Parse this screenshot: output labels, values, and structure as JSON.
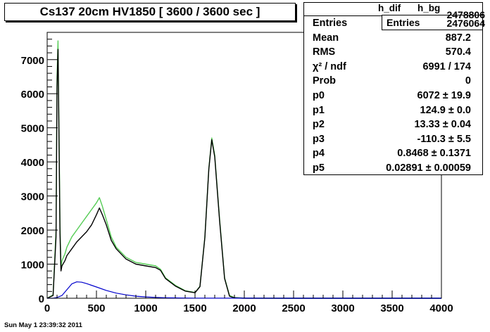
{
  "title": "Cs137 20cm HV1850 [ 3600 / 3600 sec ]",
  "footer": "Sun May  1 23:39:32 2011",
  "stats": {
    "hdr_a": "h_dif",
    "hdr_b": "h_bg",
    "entries_label": "Entries",
    "entries_value": "2478806",
    "entries_value_b": "2476064",
    "rows": [
      {
        "k": "Entries",
        "v": ""
      },
      {
        "k": "Mean",
        "v": "887.2"
      },
      {
        "k": "RMS",
        "v": "570.4"
      },
      {
        "k": "χ² / ndf",
        "v": "6991 / 174"
      },
      {
        "k": "Prob",
        "v": "0"
      },
      {
        "k": "p0",
        "v": "6072 ± 19.9"
      },
      {
        "k": "p1",
        "v": "124.9 ± 0.0"
      },
      {
        "k": "p2",
        "v": "13.33 ± 0.04"
      },
      {
        "k": "p3",
        "v": "-110.3 ± 5.5"
      },
      {
        "k": "p4",
        "v": "0.8468 ± 0.1371"
      },
      {
        "k": "p5",
        "v": "0.02891 ± 0.00059"
      }
    ]
  },
  "chart_data": {
    "type": "line",
    "title": "Cs137 20cm HV1850 [ 3600 / 3600 sec ]",
    "xlim": [
      0,
      4000
    ],
    "ylim": [
      0,
      7800
    ],
    "x_ticks": [
      0,
      500,
      1000,
      1500,
      2000,
      2500,
      3000,
      3500,
      4000
    ],
    "y_ticks": [
      0,
      1000,
      2000,
      3000,
      4000,
      5000,
      6000,
      7000
    ],
    "grid": false,
    "colors": {
      "total": "#55cc55",
      "difference": "#000000",
      "background": "#0000cc"
    },
    "series": [
      {
        "key": "total",
        "x": [
          0,
          60,
          90,
          100,
          110,
          120,
          130,
          140,
          150,
          180,
          200,
          250,
          300,
          350,
          400,
          450,
          500,
          530,
          560,
          600,
          650,
          700,
          800,
          900,
          1000,
          1100,
          1150,
          1200,
          1300,
          1400,
          1500,
          1550,
          1600,
          1640,
          1670,
          1700,
          1750,
          1800,
          1850,
          1900,
          2000,
          2500,
          3000,
          3500,
          4000
        ],
        "y": [
          0,
          100,
          2000,
          6500,
          7550,
          5000,
          2200,
          900,
          1100,
          1300,
          1500,
          1800,
          2000,
          2200,
          2400,
          2600,
          2800,
          2950,
          2700,
          2300,
          1800,
          1500,
          1200,
          1050,
          1000,
          950,
          850,
          600,
          380,
          220,
          170,
          350,
          1800,
          3800,
          4700,
          4200,
          2300,
          600,
          80,
          20,
          5,
          0,
          0,
          0,
          0
        ]
      },
      {
        "key": "difference",
        "x": [
          0,
          60,
          90,
          100,
          110,
          120,
          130,
          140,
          150,
          180,
          200,
          250,
          300,
          350,
          400,
          450,
          500,
          530,
          560,
          600,
          650,
          700,
          800,
          900,
          1000,
          1100,
          1150,
          1200,
          1300,
          1400,
          1500,
          1550,
          1600,
          1640,
          1670,
          1700,
          1750,
          1800,
          1850,
          1900,
          2000,
          2500,
          3000,
          3500,
          4000
        ],
        "y": [
          0,
          80,
          1800,
          6200,
          7300,
          4700,
          1900,
          800,
          950,
          1100,
          1250,
          1450,
          1650,
          1800,
          1950,
          2150,
          2450,
          2650,
          2450,
          2150,
          1700,
          1450,
          1150,
          1000,
          950,
          900,
          820,
          580,
          360,
          210,
          160,
          340,
          1780,
          3780,
          4650,
          4150,
          2250,
          580,
          60,
          10,
          0,
          0,
          0,
          0,
          0
        ]
      },
      {
        "key": "background",
        "x": [
          0,
          60,
          100,
          150,
          200,
          250,
          300,
          350,
          400,
          500,
          600,
          700,
          800,
          900,
          1000,
          1100,
          1200,
          1300,
          1500,
          1700,
          2000,
          2500,
          3000,
          3500,
          4000
        ],
        "y": [
          0,
          0,
          20,
          80,
          250,
          420,
          480,
          470,
          430,
          330,
          230,
          150,
          100,
          60,
          40,
          25,
          15,
          10,
          5,
          3,
          2,
          1,
          0,
          0,
          0
        ]
      }
    ]
  }
}
